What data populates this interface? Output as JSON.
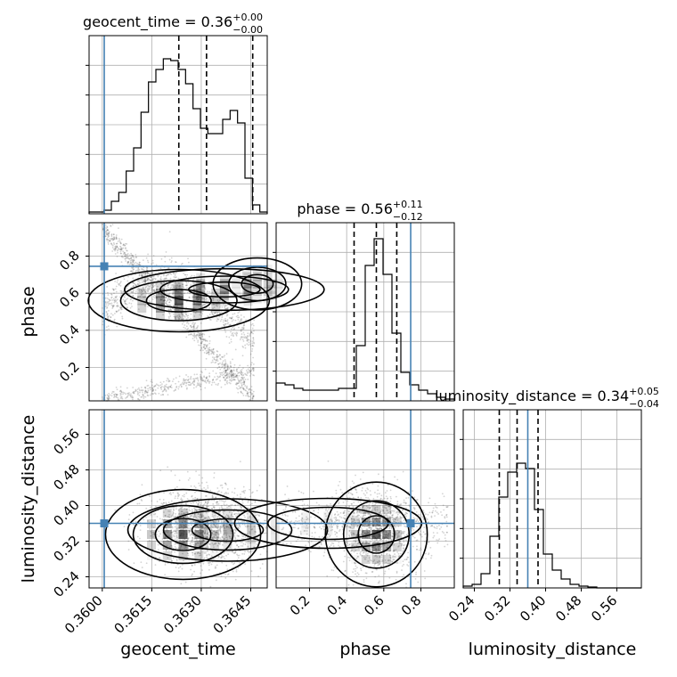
{
  "chart_data": {
    "type": "corner",
    "parameters": [
      "geocent_time",
      "phase",
      "luminosity_distance"
    ],
    "truths": [
      0.36006,
      0.745,
      0.36
    ],
    "truth_color": "#4682b4",
    "ranges": {
      "geocent_time": [
        0.3596,
        0.365
      ],
      "phase": [
        0.02,
        0.98
      ],
      "luminosity_distance": [
        0.215,
        0.615
      ]
    },
    "titles": [
      {
        "param": "geocent_time",
        "prefix": "geocent_time = 0.36",
        "upper": "+0.00",
        "lower": "−0.00"
      },
      {
        "param": "phase",
        "prefix": "phase = 0.56",
        "upper": "+0.11",
        "lower": "−0.12"
      },
      {
        "param": "luminosity_distance",
        "prefix": "luminosity_distance = 0.34",
        "upper": "+0.05",
        "lower": "−0.04"
      }
    ],
    "ticks": {
      "geocent_time": {
        "values": [
          0.36,
          0.3615,
          0.363,
          0.3645
        ],
        "labels": [
          "0.3600",
          "0.3615",
          "0.3630",
          "0.3645"
        ]
      },
      "phase": {
        "values": [
          0.2,
          0.4,
          0.6,
          0.8
        ],
        "labels": [
          "0.2",
          "0.4",
          "0.6",
          "0.8"
        ]
      },
      "luminosity_distance": {
        "values": [
          0.24,
          0.32,
          0.4,
          0.48,
          0.56
        ],
        "labels": [
          "0.24",
          "0.32",
          "0.40",
          "0.48",
          "0.56"
        ]
      }
    },
    "axis_labels": {
      "geocent_time": "geocent_time",
      "phase": "phase",
      "luminosity_distance": "luminosity_distance"
    },
    "quantiles": {
      "geocent_time": [
        0.36232,
        0.36316,
        0.36456
      ],
      "phase": [
        0.44,
        0.56,
        0.67
      ],
      "luminosity_distance": [
        0.296,
        0.336,
        0.383
      ]
    },
    "histograms": {
      "geocent_time": [
        0.01,
        0.01,
        0.02,
        0.07,
        0.12,
        0.24,
        0.37,
        0.57,
        0.74,
        0.81,
        0.87,
        0.86,
        0.81,
        0.73,
        0.59,
        0.48,
        0.45,
        0.45,
        0.53,
        0.58,
        0.51,
        0.2,
        0.05,
        0.01
      ],
      "phase": [
        0.1,
        0.09,
        0.07,
        0.06,
        0.06,
        0.06,
        0.06,
        0.07,
        0.07,
        0.31,
        0.76,
        0.91,
        0.71,
        0.38,
        0.16,
        0.09,
        0.06,
        0.04,
        0.02,
        0.01
      ],
      "luminosity_distance": [
        0.01,
        0.02,
        0.08,
        0.29,
        0.51,
        0.65,
        0.7,
        0.67,
        0.44,
        0.19,
        0.1,
        0.05,
        0.02,
        0.01,
        0.005,
        0,
        0,
        0,
        0,
        0
      ]
    },
    "grid": true
  }
}
